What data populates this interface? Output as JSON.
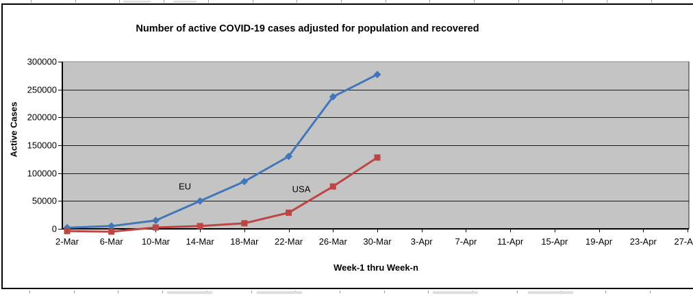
{
  "chart_data": {
    "type": "line",
    "title": "Number of active COVID-19 cases adjusted for population and recovered",
    "xlabel": "Week-1 thru Week-n",
    "ylabel": "Active Cases",
    "categories": [
      "2-Mar",
      "6-Mar",
      "10-Mar",
      "14-Mar",
      "18-Mar",
      "22-Mar",
      "26-Mar",
      "30-Mar",
      "3-Apr",
      "7-Apr",
      "11-Apr",
      "15-Apr",
      "19-Apr",
      "23-Apr",
      "27-Apr"
    ],
    "ylim": [
      0,
      300000
    ],
    "ytick_step": 50000,
    "ytick_labels": [
      "0",
      "50000",
      "100000",
      "150000",
      "200000",
      "250000",
      "300000"
    ],
    "grid": "horizontal-major",
    "legend_position": "none",
    "plot_background": "#c4c4c4",
    "gridline_color": "#1a1a1a",
    "series": [
      {
        "name": "EU",
        "color": "#4376b8",
        "marker": "diamond",
        "values": [
          2000,
          5000,
          15000,
          50000,
          85000,
          130000,
          237000,
          277000
        ]
      },
      {
        "name": "USA",
        "color": "#bc4643",
        "marker": "square",
        "values": [
          -4000,
          -5000,
          2500,
          5000,
          10000,
          29000,
          76000,
          128000
        ]
      }
    ],
    "annotations": [
      {
        "text": "EU",
        "x": 270,
        "y": 272
      },
      {
        "text": "USA",
        "x": 440,
        "y": 276
      }
    ]
  }
}
